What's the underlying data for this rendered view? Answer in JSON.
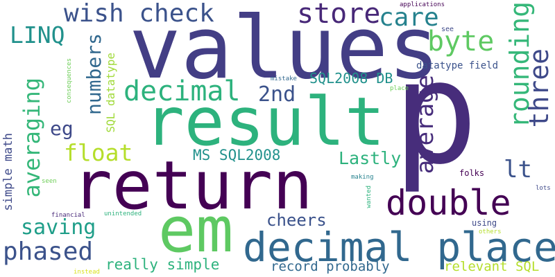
{
  "words": [
    {
      "text": "p",
      "color": "#472d7b",
      "vertical": false
    },
    {
      "text": "values",
      "color": "#433e85",
      "vertical": false
    },
    {
      "text": "result",
      "color": "#2db27d",
      "vertical": false
    },
    {
      "text": "return",
      "color": "#440154",
      "vertical": false
    },
    {
      "text": "em",
      "color": "#5ec962",
      "vertical": false
    },
    {
      "text": "decimal place",
      "color": "#31688e",
      "vertical": false
    },
    {
      "text": "double",
      "color": "#440154",
      "vertical": false
    },
    {
      "text": "decimal",
      "color": "#2db27d",
      "vertical": false
    },
    {
      "text": "wish check",
      "color": "#3b528b",
      "vertical": false
    },
    {
      "text": "store",
      "color": "#482878",
      "vertical": false
    },
    {
      "text": "care",
      "color": "#26828e",
      "vertical": false
    },
    {
      "text": "LINQ",
      "color": "#21918c",
      "vertical": false
    },
    {
      "text": "byte",
      "color": "#5ec962",
      "vertical": false
    },
    {
      "text": "rounding",
      "color": "#35b779",
      "vertical": true
    },
    {
      "text": "three",
      "color": "#3e4989",
      "vertical": true
    },
    {
      "text": "average",
      "color": "#472d7b",
      "vertical": true
    },
    {
      "text": "averaging",
      "color": "#35b779",
      "vertical": true
    },
    {
      "text": "numbers",
      "color": "#31688e",
      "vertical": true
    },
    {
      "text": "2nd",
      "color": "#3b528b",
      "vertical": false
    },
    {
      "text": "eg",
      "color": "#3e4989",
      "vertical": false
    },
    {
      "text": "float",
      "color": "#b5de2b",
      "vertical": false
    },
    {
      "text": "lt",
      "color": "#3b528b",
      "vertical": false
    },
    {
      "text": "SQL2008 DB",
      "color": "#21918c",
      "vertical": false
    },
    {
      "text": "MS SQL2008",
      "color": "#21918c",
      "vertical": false
    },
    {
      "text": "Lastly",
      "color": "#2db27d",
      "vertical": false
    },
    {
      "text": "SQL datatype",
      "color": "#a0da39",
      "vertical": true
    },
    {
      "text": "datatype field",
      "color": "#3b528b",
      "vertical": false
    },
    {
      "text": "simple math",
      "color": "#3e4989",
      "vertical": true
    },
    {
      "text": "saving",
      "color": "#1f9e89",
      "vertical": false
    },
    {
      "text": "phased",
      "color": "#3b528b",
      "vertical": false
    },
    {
      "text": "cheers",
      "color": "#3b528b",
      "vertical": false
    },
    {
      "text": "really simple",
      "color": "#2db27d",
      "vertical": false
    },
    {
      "text": "record probably",
      "color": "#31688e",
      "vertical": false
    },
    {
      "text": "relevant SQL",
      "color": "#b5de2b",
      "vertical": false
    },
    {
      "text": "applications",
      "color": "#440154",
      "vertical": false
    },
    {
      "text": "see",
      "color": "#3e4989",
      "vertical": false
    },
    {
      "text": "consequences",
      "color": "#6ece58",
      "vertical": true
    },
    {
      "text": "mistake",
      "color": "#31688e",
      "vertical": false
    },
    {
      "text": "place",
      "color": "#6ece58",
      "vertical": false
    },
    {
      "text": "folks",
      "color": "#440154",
      "vertical": false
    },
    {
      "text": "lots",
      "color": "#3e4989",
      "vertical": false
    },
    {
      "text": "making",
      "color": "#26828e",
      "vertical": false
    },
    {
      "text": "wanted",
      "color": "#2db27d",
      "vertical": true
    },
    {
      "text": "seen",
      "color": "#6ece58",
      "vertical": false
    },
    {
      "text": "unintended",
      "color": "#2db27d",
      "vertical": false
    },
    {
      "text": "financial",
      "color": "#482878",
      "vertical": false
    },
    {
      "text": "using",
      "color": "#3e4989",
      "vertical": false
    },
    {
      "text": "others",
      "color": "#b5de2b",
      "vertical": false
    },
    {
      "text": "instead",
      "color": "#d8e219",
      "vertical": false
    }
  ]
}
